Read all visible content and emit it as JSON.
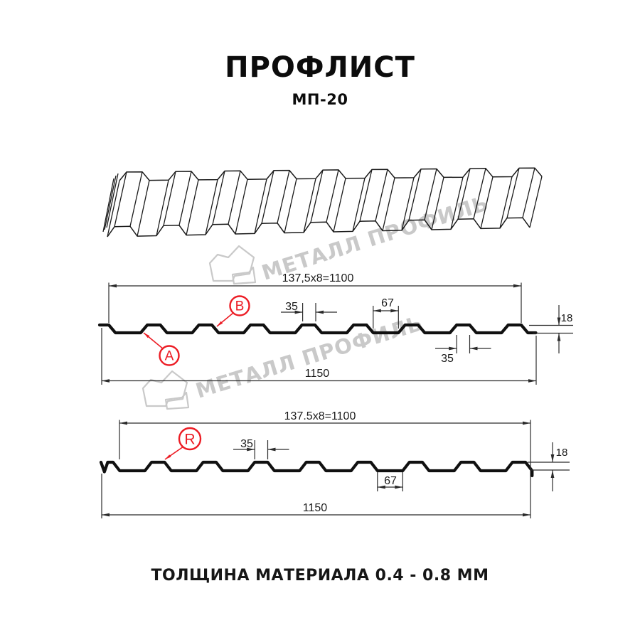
{
  "title": "ПРОФЛИСТ",
  "subtitle": "МП-20",
  "footer": "ТОЛЩИНА МАТЕРИАЛА 0.4 - 0.8 ММ",
  "watermark": {
    "text": "МЕТАЛЛ ПРОФИЛЬ",
    "color": "#c9c9c9"
  },
  "colors": {
    "background": "#ffffff",
    "line": "#1a1a1a",
    "dimension": "#2b2b2b",
    "accent_red": "#ec1c24"
  },
  "sections": [
    {
      "id": "section-ab",
      "view": "cross-section",
      "point_labels": [
        "A",
        "B"
      ],
      "dimensions": {
        "pitch_total": "137,5x8=1100",
        "crest_width": "35",
        "valley_width": "67",
        "height": "18",
        "crest_width_2": "35",
        "overall_width": "1150"
      }
    },
    {
      "id": "section-r",
      "view": "cross-section",
      "point_labels": [
        "R"
      ],
      "dimensions": {
        "pitch_total": "137.5x8=1100",
        "crest_width": "35",
        "valley_width": "67",
        "height": "18",
        "overall_width": "1150"
      }
    }
  ]
}
